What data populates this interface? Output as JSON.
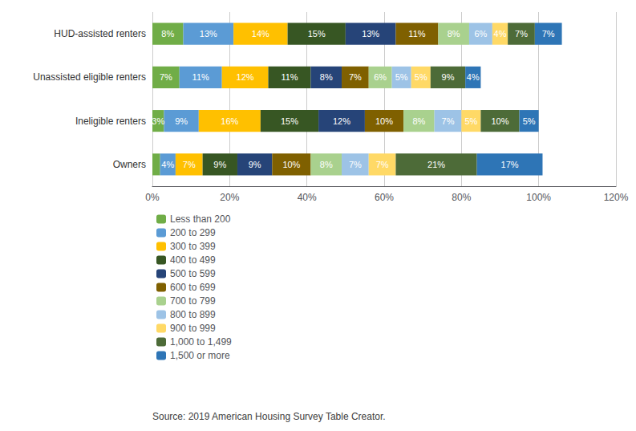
{
  "chart_data": {
    "type": "bar",
    "orientation": "horizontal",
    "stacked": true,
    "data_labels": true,
    "grid": true,
    "legend": "bottom",
    "categories": [
      "HUD-assisted renters",
      "Unassisted eligible renters",
      "Ineligible renters",
      "Owners"
    ],
    "series": [
      {
        "name": "Less than 200",
        "color": "#70ad47",
        "values": [
          8,
          7,
          3,
          2
        ],
        "value_labels": [
          "8%",
          "7%",
          "3%",
          null
        ]
      },
      {
        "name": "200 to 299",
        "color": "#5b9bd5",
        "values": [
          13,
          11,
          9,
          4
        ],
        "value_labels": [
          "13%",
          "11%",
          "9%",
          "4%"
        ]
      },
      {
        "name": "300 to 399",
        "color": "#ffc000",
        "values": [
          14,
          12,
          16,
          7
        ],
        "value_labels": [
          "14%",
          "12%",
          "16%",
          "7%"
        ]
      },
      {
        "name": "400 to 499",
        "color": "#375623",
        "values": [
          15,
          11,
          15,
          9
        ],
        "value_labels": [
          "15%",
          "11%",
          "15%",
          "9%"
        ]
      },
      {
        "name": "500 to 599",
        "color": "#264478",
        "values": [
          13,
          8,
          12,
          9
        ],
        "value_labels": [
          "13%",
          "8%",
          "12%",
          "9%"
        ]
      },
      {
        "name": "600 to 699",
        "color": "#7f6000",
        "values": [
          11,
          7,
          10,
          10
        ],
        "value_labels": [
          "11%",
          "7%",
          "10%",
          "10%"
        ]
      },
      {
        "name": "700 to 799",
        "color": "#a9d18e",
        "values": [
          8,
          6,
          8,
          8
        ],
        "value_labels": [
          "8%",
          "6%",
          "8%",
          "8%"
        ]
      },
      {
        "name": "800 to 899",
        "color": "#9dc3e6",
        "values": [
          6,
          5,
          7,
          7
        ],
        "value_labels": [
          "6%",
          "5%",
          "7%",
          "7%"
        ]
      },
      {
        "name": "900 to 999",
        "color": "#ffd966",
        "values": [
          4,
          5,
          5,
          7
        ],
        "value_labels": [
          "4%",
          "5%",
          "5%",
          "7%"
        ]
      },
      {
        "name": "1,000 to 1,499",
        "color": "#4d6b38",
        "values": [
          7,
          9,
          10,
          21
        ],
        "value_labels": [
          "7%",
          "9%",
          "10%",
          "21%"
        ]
      },
      {
        "name": "1,500 or more",
        "color": "#2e75b6",
        "values": [
          7,
          4,
          5,
          17
        ],
        "value_labels": [
          "7%",
          "4%",
          "5%",
          "17%"
        ]
      }
    ],
    "xlim": [
      0,
      120
    ],
    "xticks": [
      {
        "value": 0,
        "label": "0%"
      },
      {
        "value": 20,
        "label": "20%"
      },
      {
        "value": 40,
        "label": "40%"
      },
      {
        "value": 60,
        "label": "60%"
      },
      {
        "value": 80,
        "label": "80%"
      },
      {
        "value": 100,
        "label": "100%"
      },
      {
        "value": 120,
        "label": "120%"
      }
    ],
    "annotations": [
      "Source: 2019 American Housing Survey Table Creator."
    ]
  }
}
